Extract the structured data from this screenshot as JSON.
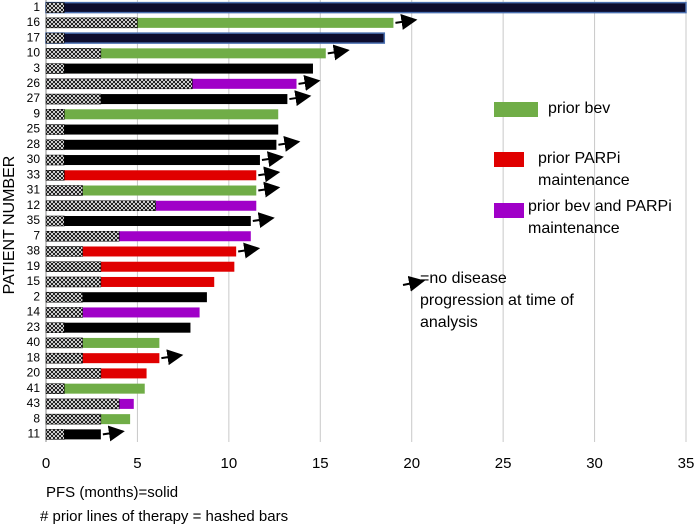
{
  "chart_data": {
    "type": "swimmer",
    "y_label": "PATIENT NUMBER",
    "x_label": "PFS (months)=solid",
    "note": "# prior lines of therapy = hashed bars",
    "categories": [
      "1",
      "16",
      "17",
      "10",
      "3",
      "26",
      "27",
      "9",
      "25",
      "28",
      "30",
      "33",
      "31",
      "12",
      "35",
      "7",
      "38",
      "19",
      "15",
      "2",
      "14",
      "23",
      "40",
      "18",
      "20",
      "41",
      "43",
      "8",
      "11"
    ],
    "values": [
      35.0,
      19.0,
      18.5,
      15.3,
      14.6,
      13.7,
      13.2,
      12.7,
      12.7,
      12.6,
      11.7,
      11.5,
      11.5,
      11.5,
      11.2,
      11.2,
      10.4,
      10.3,
      9.2,
      8.8,
      8.4,
      7.9,
      6.2,
      6.2,
      5.5,
      5.4,
      4.8,
      4.6,
      3.0
    ],
    "prior_lines": [
      1,
      5,
      1,
      3,
      1,
      8,
      3,
      1,
      1,
      1,
      1,
      1,
      2,
      6,
      1,
      4,
      2,
      3,
      3,
      2,
      2,
      1,
      2,
      2,
      3,
      1,
      4,
      3,
      1
    ],
    "colors": [
      "#0d0d2e",
      "#70ad47",
      "#0d0d2e",
      "#70ad47",
      "#000000",
      "#a000c8",
      "#000000",
      "#70ad47",
      "#000000",
      "#000000",
      "#000000",
      "#e00000",
      "#70ad47",
      "#a000c8",
      "#000000",
      "#a000c8",
      "#e00000",
      "#e00000",
      "#e00000",
      "#000000",
      "#a000c8",
      "#000000",
      "#70ad47",
      "#e00000",
      "#e00000",
      "#70ad47",
      "#a000c8",
      "#70ad47",
      "#000000"
    ],
    "ongoing": [
      false,
      true,
      false,
      true,
      false,
      true,
      true,
      false,
      false,
      true,
      true,
      true,
      true,
      false,
      true,
      false,
      true,
      false,
      false,
      false,
      false,
      false,
      false,
      true,
      false,
      false,
      false,
      false,
      true
    ],
    "legend": [
      {
        "label": "prior bev",
        "color": "#70ad47"
      },
      {
        "label": "prior PARPi maintenance",
        "color": "#e00000"
      },
      {
        "label": "prior bev and PARPi maintenance",
        "color": "#a000c8"
      }
    ],
    "arrow_legend": "=no disease progression at time of analysis",
    "xlim": [
      0,
      35
    ],
    "xticks": [
      0,
      5,
      10,
      15,
      20,
      25,
      30,
      35
    ],
    "grid": true
  }
}
